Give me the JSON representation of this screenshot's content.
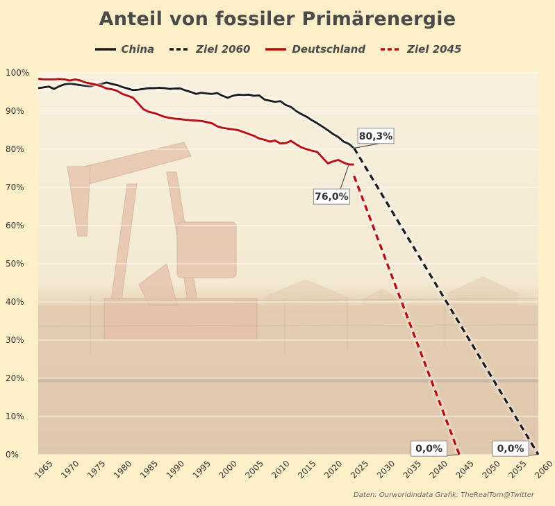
{
  "title": "Anteil von fossiler Primärenergie",
  "source": "Daten: Ourworldindata  Grafik: TheRealTom@Twitter",
  "legend": [
    {
      "label": "China",
      "color": "#1a1a1a",
      "dash": false
    },
    {
      "label": "Ziel 2060",
      "color": "#1a1a1a",
      "dash": true
    },
    {
      "label": "Deutschland",
      "color": "#cc0000",
      "dash": false
    },
    {
      "label": "Ziel 2045",
      "color": "#cc0000",
      "dash": true
    }
  ],
  "chart_data": {
    "type": "line",
    "title": "Anteil von fossiler Primärenergie",
    "xlim": [
      1965,
      2060
    ],
    "ylim": [
      0,
      100
    ],
    "x_ticks": [
      1965,
      1970,
      1975,
      1980,
      1985,
      1990,
      1995,
      2000,
      2005,
      2010,
      2015,
      2020,
      2025,
      2030,
      2035,
      2040,
      2045,
      2050,
      2055,
      2060
    ],
    "y_ticks": [
      0,
      10,
      20,
      30,
      40,
      50,
      60,
      70,
      80,
      90,
      100
    ],
    "y_tick_labels": [
      "0%",
      "10%",
      "20%",
      "30%",
      "40%",
      "50%",
      "60%",
      "70%",
      "80%",
      "90%",
      "100%"
    ],
    "grid": "horizontal",
    "legend_position": "top",
    "series": [
      {
        "name": "China",
        "color": "#1a1a1a",
        "dash": false,
        "points": [
          [
            1965,
            96.0
          ],
          [
            1966,
            96.2
          ],
          [
            1967,
            96.4
          ],
          [
            1968,
            95.8
          ],
          [
            1969,
            96.5
          ],
          [
            1970,
            97.0
          ],
          [
            1971,
            97.2
          ],
          [
            1972,
            97.0
          ],
          [
            1973,
            96.8
          ],
          [
            1974,
            96.6
          ],
          [
            1975,
            96.5
          ],
          [
            1976,
            96.9
          ],
          [
            1977,
            97.1
          ],
          [
            1978,
            97.5
          ],
          [
            1979,
            97.1
          ],
          [
            1980,
            96.8
          ],
          [
            1981,
            96.3
          ],
          [
            1982,
            95.9
          ],
          [
            1983,
            95.5
          ],
          [
            1984,
            95.6
          ],
          [
            1985,
            95.8
          ],
          [
            1986,
            96.0
          ],
          [
            1987,
            96.0
          ],
          [
            1988,
            96.1
          ],
          [
            1989,
            96.0
          ],
          [
            1990,
            95.8
          ],
          [
            1991,
            95.9
          ],
          [
            1992,
            95.9
          ],
          [
            1993,
            95.4
          ],
          [
            1994,
            95.0
          ],
          [
            1995,
            94.5
          ],
          [
            1996,
            94.8
          ],
          [
            1997,
            94.6
          ],
          [
            1998,
            94.5
          ],
          [
            1999,
            94.7
          ],
          [
            2000,
            94.0
          ],
          [
            2001,
            93.5
          ],
          [
            2002,
            94.0
          ],
          [
            2003,
            94.3
          ],
          [
            2004,
            94.2
          ],
          [
            2005,
            94.3
          ],
          [
            2006,
            94.0
          ],
          [
            2007,
            94.1
          ],
          [
            2008,
            93.0
          ],
          [
            2009,
            92.7
          ],
          [
            2010,
            92.4
          ],
          [
            2011,
            92.6
          ],
          [
            2012,
            91.6
          ],
          [
            2013,
            91.1
          ],
          [
            2014,
            90.0
          ],
          [
            2015,
            89.2
          ],
          [
            2016,
            88.5
          ],
          [
            2017,
            87.6
          ],
          [
            2018,
            86.8
          ],
          [
            2019,
            85.9
          ],
          [
            2020,
            85.0
          ],
          [
            2021,
            84.0
          ],
          [
            2022,
            83.2
          ],
          [
            2023,
            82.0
          ],
          [
            2024,
            81.4
          ],
          [
            2025,
            80.3
          ]
        ]
      },
      {
        "name": "Ziel 2060",
        "color": "#1a1a1a",
        "dash": true,
        "points": [
          [
            2025,
            80.3
          ],
          [
            2060,
            0
          ]
        ]
      },
      {
        "name": "Deutschland",
        "color": "#cc0000",
        "dash": false,
        "points": [
          [
            1965,
            98.5
          ],
          [
            1966,
            98.3
          ],
          [
            1967,
            98.3
          ],
          [
            1968,
            98.3
          ],
          [
            1969,
            98.4
          ],
          [
            1970,
            98.3
          ],
          [
            1971,
            98.0
          ],
          [
            1972,
            98.3
          ],
          [
            1973,
            98.0
          ],
          [
            1974,
            97.5
          ],
          [
            1975,
            97.2
          ],
          [
            1976,
            96.9
          ],
          [
            1977,
            96.5
          ],
          [
            1978,
            95.9
          ],
          [
            1979,
            95.7
          ],
          [
            1980,
            95.3
          ],
          [
            1981,
            94.5
          ],
          [
            1982,
            94.0
          ],
          [
            1983,
            93.5
          ],
          [
            1984,
            92.0
          ],
          [
            1985,
            90.5
          ],
          [
            1986,
            89.8
          ],
          [
            1987,
            89.5
          ],
          [
            1988,
            89.0
          ],
          [
            1989,
            88.5
          ],
          [
            1990,
            88.2
          ],
          [
            1991,
            88.0
          ],
          [
            1992,
            87.9
          ],
          [
            1993,
            87.7
          ],
          [
            1994,
            87.6
          ],
          [
            1995,
            87.5
          ],
          [
            1996,
            87.4
          ],
          [
            1997,
            87.1
          ],
          [
            1998,
            86.8
          ],
          [
            1999,
            86.0
          ],
          [
            2000,
            85.6
          ],
          [
            2001,
            85.4
          ],
          [
            2002,
            85.2
          ],
          [
            2003,
            85.0
          ],
          [
            2004,
            84.5
          ],
          [
            2005,
            84.0
          ],
          [
            2006,
            83.5
          ],
          [
            2007,
            82.8
          ],
          [
            2008,
            82.5
          ],
          [
            2009,
            82.0
          ],
          [
            2010,
            82.3
          ],
          [
            2011,
            81.5
          ],
          [
            2012,
            81.6
          ],
          [
            2013,
            82.2
          ],
          [
            2014,
            81.3
          ],
          [
            2015,
            80.5
          ],
          [
            2016,
            80.0
          ],
          [
            2017,
            79.6
          ],
          [
            2018,
            79.3
          ],
          [
            2019,
            77.8
          ],
          [
            2020,
            76.3
          ],
          [
            2021,
            76.8
          ],
          [
            2022,
            77.2
          ],
          [
            2023,
            76.5
          ],
          [
            2024,
            76.0
          ],
          [
            2025,
            76.0
          ]
        ]
      },
      {
        "name": "Ziel 2045",
        "color": "#cc0000",
        "dash": true,
        "points": [
          [
            2025,
            73
          ],
          [
            2045,
            0
          ]
        ]
      }
    ],
    "annotations": [
      {
        "text": "80,3%",
        "x": 2025,
        "y": 80.3,
        "box_x": 2025.7,
        "box_y": 85.5
      },
      {
        "text": "76,0%",
        "x": 2024,
        "y": 76.0,
        "box_x": 2017.3,
        "box_y": 69.6
      },
      {
        "text": "0,0%",
        "x": 2045,
        "y": 0,
        "box_x": 2035.8,
        "box_y": 3.6
      },
      {
        "text": "0,0%",
        "x": 2060,
        "y": 0,
        "box_x": 2051.3,
        "box_y": 3.6
      }
    ]
  }
}
